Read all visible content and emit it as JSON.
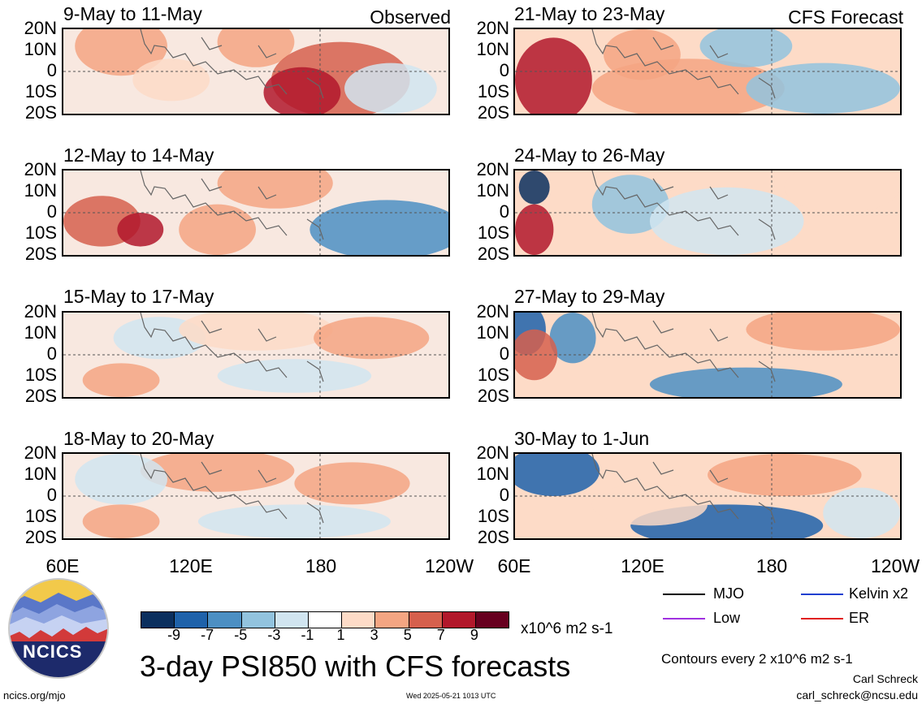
{
  "chart_data": {
    "type": "heatmap",
    "title": "3-day PSI850 with CFS forecasts",
    "observed_label": "Observed",
    "forecast_label": "CFS Forecast",
    "panels": [
      {
        "title": "9-May to 11-May",
        "group": "Observed"
      },
      {
        "title": "21-May to 23-May",
        "group": "CFS Forecast"
      },
      {
        "title": "12-May to 14-May",
        "group": "Observed"
      },
      {
        "title": "24-May to 26-May",
        "group": "CFS Forecast"
      },
      {
        "title": "15-May to 17-May",
        "group": "Observed"
      },
      {
        "title": "27-May to 29-May",
        "group": "CFS Forecast"
      },
      {
        "title": "18-May to 20-May",
        "group": "Observed"
      },
      {
        "title": "30-May to 1-Jun",
        "group": "CFS Forecast"
      }
    ],
    "y_ticks": [
      "20N",
      "10N",
      "0",
      "10S",
      "20S"
    ],
    "x_ticks": [
      "60E",
      "120E",
      "180",
      "120W"
    ],
    "colorbar": {
      "labels": [
        "-9",
        "-7",
        "-5",
        "-3",
        "-1",
        "1",
        "3",
        "5",
        "7",
        "9"
      ],
      "colors": [
        "#0b2f5e",
        "#1f62aa",
        "#4c8fc3",
        "#92c3de",
        "#d1e5f0",
        "#ffffff",
        "#fddbc7",
        "#f4a582",
        "#d6604d",
        "#b2182b",
        "#67001f"
      ],
      "units": "x10^6 m2 s-1"
    },
    "legend": [
      {
        "label": "MJO",
        "color": "#000000"
      },
      {
        "label": "Kelvin x2",
        "color": "#1f3fd0"
      },
      {
        "label": "Low",
        "color": "#a030e0"
      },
      {
        "label": "ER",
        "color": "#e02020"
      }
    ],
    "contour_note": "Contours every 2 x10^6 m2 s-1"
  },
  "footer": {
    "site": "ncics.org/mjo",
    "timestamp": "Wed 2025-05-21 1013 UTC",
    "author": "Carl Schreck",
    "email": "carl_schreck@ncsu.edu",
    "logo_text": "NCICS"
  },
  "icons": {
    "logo": "ncics-logo"
  }
}
